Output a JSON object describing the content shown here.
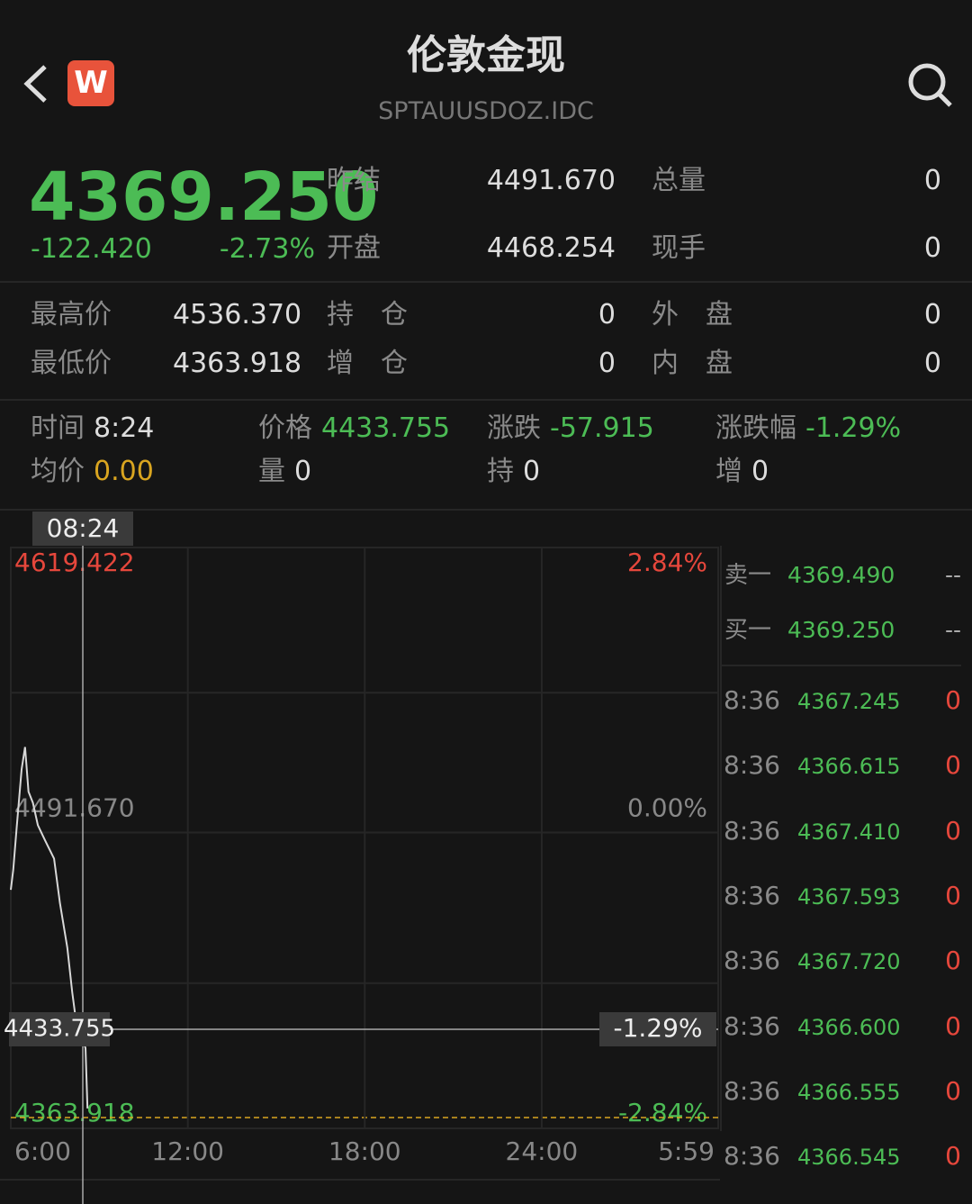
{
  "header": {
    "badge": "W",
    "title": "伦敦金现",
    "code": "SPTAUUSDOZ.IDC"
  },
  "quote": {
    "price": "4369.250",
    "change": "-122.420",
    "change_pct": "-2.73%"
  },
  "stats_top": [
    [
      {
        "label": "昨结",
        "value": "4491.670"
      },
      {
        "label": "总量",
        "value": "0"
      }
    ],
    [
      {
        "label": "开盘",
        "value": "4468.254"
      },
      {
        "label": "现手",
        "value": "0"
      }
    ]
  ],
  "stats_mid": [
    [
      {
        "label": "最高价",
        "value": "4536.370"
      },
      {
        "label": "持　仓",
        "value": "0"
      },
      {
        "label": "外　盘",
        "value": "0"
      }
    ],
    [
      {
        "label": "最低价",
        "value": "4363.918"
      },
      {
        "label": "增　仓",
        "value": "0"
      },
      {
        "label": "内　盘",
        "value": "0"
      }
    ]
  ],
  "info": [
    [
      {
        "label": "时间",
        "value": "8:24"
      },
      {
        "label": "价格",
        "value": "4433.755"
      },
      {
        "label": "涨跌",
        "value": "-57.915"
      },
      {
        "label": "涨跌幅",
        "value": "-1.29%"
      }
    ],
    [
      {
        "label": "均价",
        "value": "0.00"
      },
      {
        "label": "量",
        "value": "0"
      },
      {
        "label": "持",
        "value": "0"
      },
      {
        "label": "增",
        "value": "0"
      }
    ]
  ],
  "order_book": [
    {
      "label": "卖一",
      "price": "4369.490",
      "volume": "--"
    },
    {
      "label": "买一",
      "price": "4369.250",
      "volume": "--"
    }
  ],
  "trades": [
    {
      "time": "8:36",
      "price": "4367.245",
      "volume": "0"
    },
    {
      "time": "8:36",
      "price": "4366.615",
      "volume": "0"
    },
    {
      "time": "8:36",
      "price": "4367.410",
      "volume": "0"
    },
    {
      "time": "8:36",
      "price": "4367.593",
      "volume": "0"
    },
    {
      "time": "8:36",
      "price": "4367.720",
      "volume": "0"
    },
    {
      "time": "8:36",
      "price": "4366.600",
      "volume": "0"
    },
    {
      "time": "8:36",
      "price": "4366.555",
      "volume": "0"
    },
    {
      "time": "8:36",
      "price": "4366.545",
      "volume": "0"
    }
  ],
  "chart_data": {
    "type": "line",
    "xlim": [
      0,
      1439
    ],
    "xticks": [
      {
        "value": 0,
        "label": "6:00"
      },
      {
        "value": 360,
        "label": "12:00"
      },
      {
        "value": 720,
        "label": "18:00"
      },
      {
        "value": 1080,
        "label": "24:00"
      },
      {
        "value": 1439,
        "label": "5:59"
      }
    ],
    "ylim": [
      4363.918,
      4619.422
    ],
    "yticks": [
      4363.918,
      {
        "value": 4491.67,
        "label": "4491.670"
      },
      4619.422
    ],
    "y2lim": [
      -2.84,
      2.84
    ],
    "y2ticks": [
      {
        "value": -2.84,
        "label": "-2.84%"
      },
      {
        "value": 0,
        "label": "0.00%"
      },
      {
        "value": 2.84,
        "label": "2.84%"
      }
    ],
    "series": [
      {
        "color": "#d8d8d8",
        "x": [
          0,
          5,
          12,
          22,
          29,
          36,
          45,
          55,
          70,
          88,
          100,
          115,
          125,
          134,
          145,
          152,
          156
        ],
        "values": [
          4466,
          4475,
          4494,
          4520,
          4530,
          4510,
          4505,
          4495,
          4488,
          4480,
          4460,
          4440,
          4420,
          4405,
          4400,
          4395,
          4368
        ]
      }
    ],
    "crosshair": {
      "time": "08:24",
      "price": "4433.755",
      "pct": "-1.29%"
    }
  }
}
